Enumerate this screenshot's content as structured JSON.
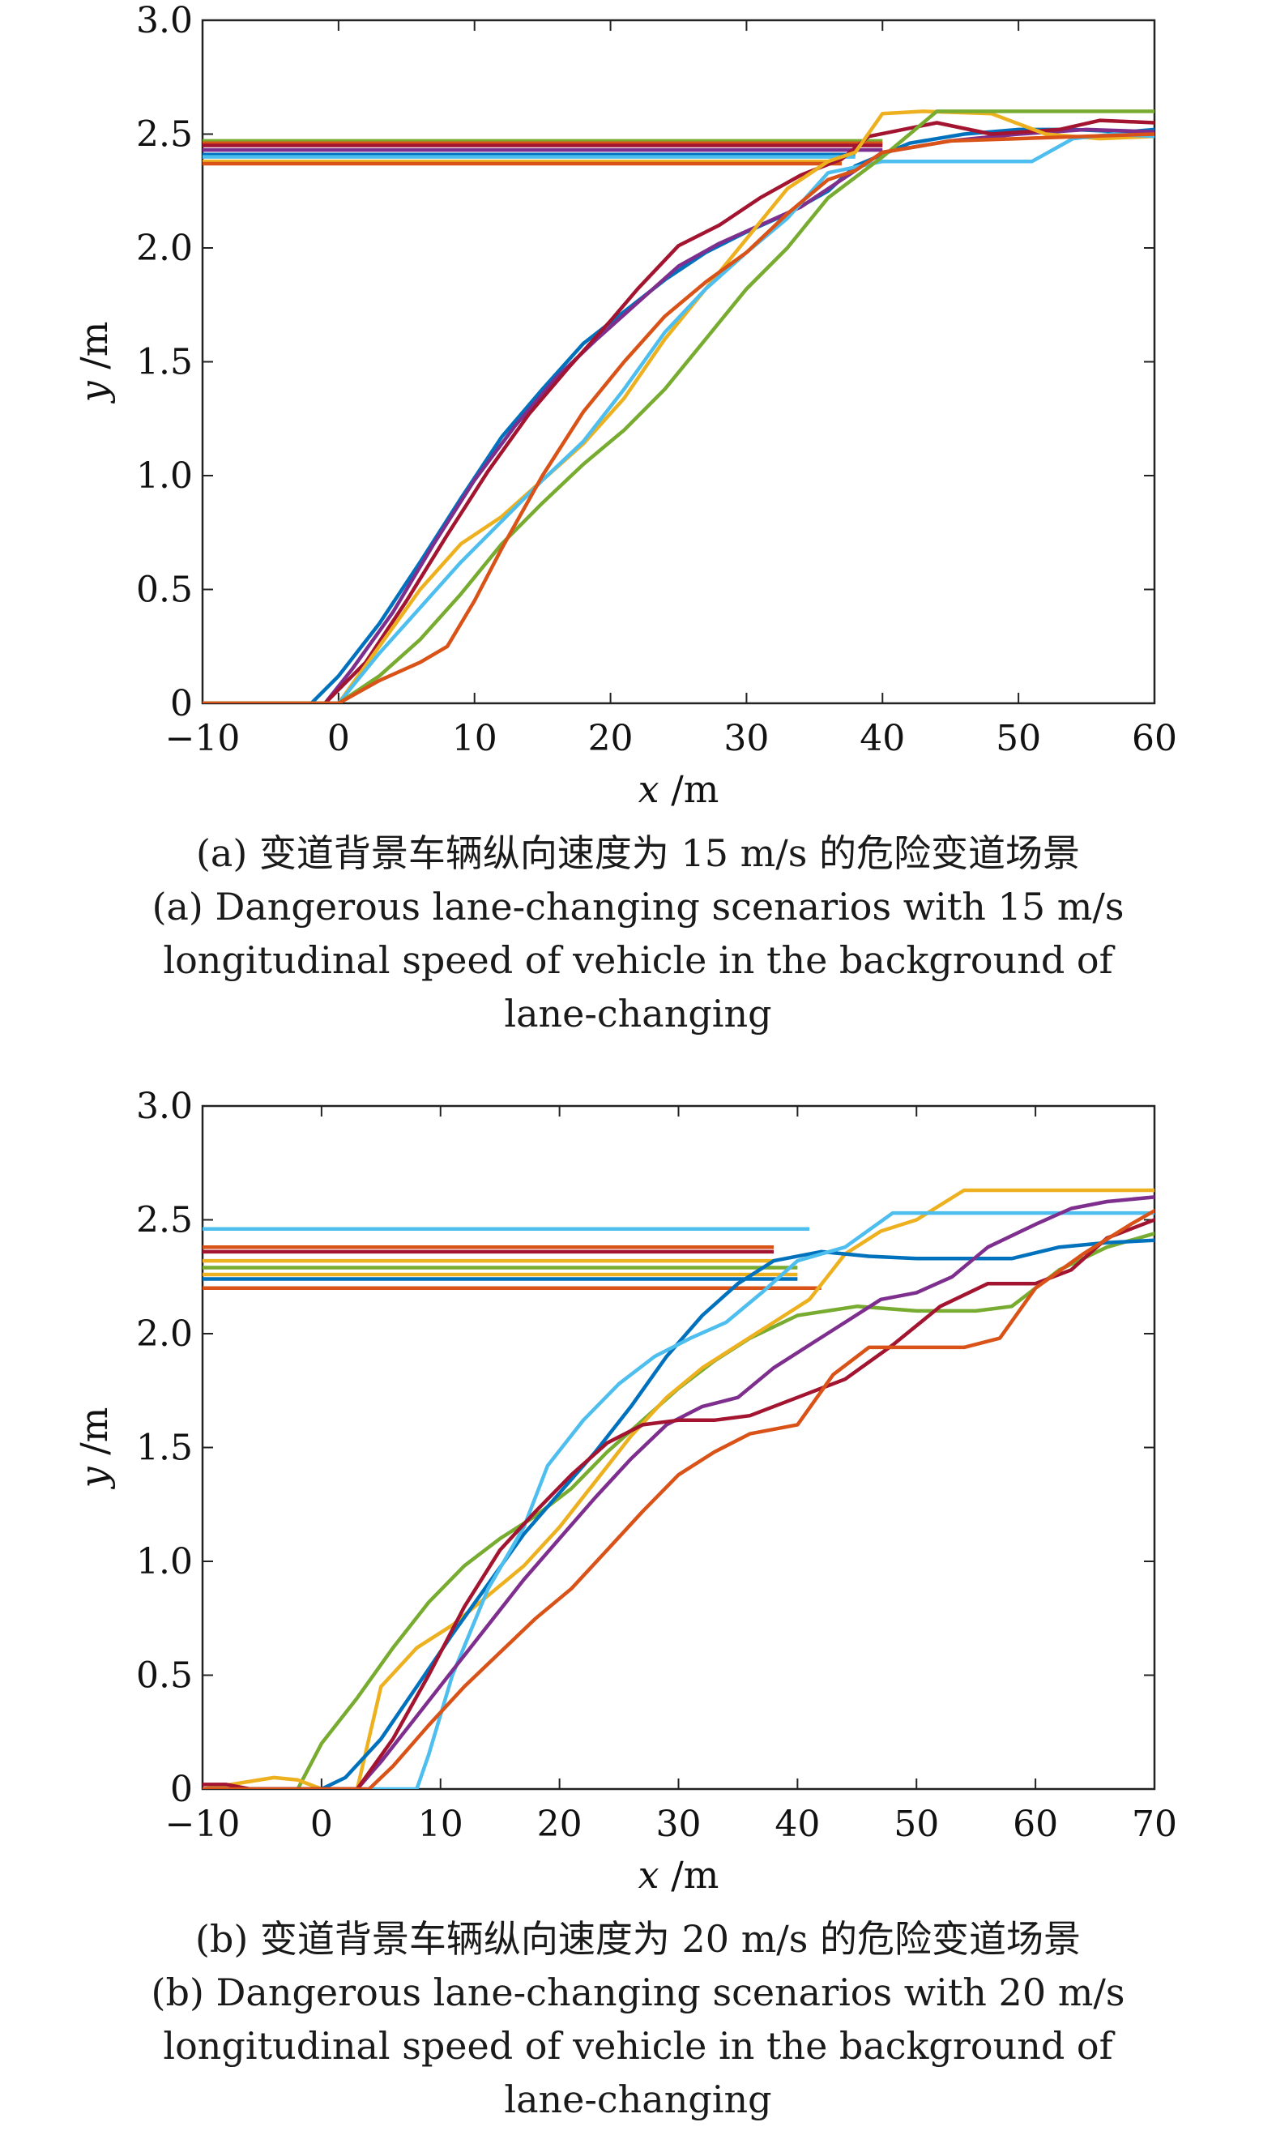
{
  "chart_data": [
    {
      "id": "a",
      "type": "line",
      "xlabel_var": "x",
      "xlabel_unit": "/m",
      "ylabel_var": "y",
      "ylabel_unit": "/m",
      "xlim": [
        -10,
        60
      ],
      "ylim": [
        0,
        3.0
      ],
      "xticks": [
        -10,
        0,
        10,
        20,
        30,
        40,
        50,
        60
      ],
      "xtick_labels": [
        "−10",
        "0",
        "10",
        "20",
        "30",
        "40",
        "50",
        "60"
      ],
      "yticks": [
        0,
        0.5,
        1.0,
        1.5,
        2.0,
        2.5,
        3.0
      ],
      "ytick_labels": [
        "0",
        "0.5",
        "1.0",
        "1.5",
        "2.0",
        "2.5",
        "3.0"
      ],
      "caption_cn": "(a) 变道背景车辆纵向速度为 15 m/s 的危险变道场景",
      "caption_en": [
        "(a) Dangerous lane-changing scenarios with 15 m/s",
        "longitudinal speed of vehicle in the background of",
        "lane-changing"
      ],
      "reference_lines": [
        {
          "color": "#77AC30",
          "y": 2.47,
          "x": [
            -10,
            40
          ]
        },
        {
          "color": "#D95319",
          "y": 2.46,
          "x": [
            -10,
            40
          ]
        },
        {
          "color": "#A2142F",
          "y": 2.45,
          "x": [
            -10,
            40
          ]
        },
        {
          "color": "#7E2F8E",
          "y": 2.43,
          "x": [
            -10,
            40
          ]
        },
        {
          "color": "#0072BD",
          "y": 2.41,
          "x": [
            -10,
            38
          ]
        },
        {
          "color": "#4DBEEE",
          "y": 2.4,
          "x": [
            -10,
            38
          ]
        },
        {
          "color": "#EDB120",
          "y": 2.38,
          "x": [
            -10,
            37
          ]
        },
        {
          "color": "#D95319",
          "y": 2.37,
          "x": [
            -10,
            37
          ]
        }
      ],
      "series": [
        {
          "color": "#0072BD",
          "x": [
            -10,
            -2,
            0,
            3,
            6,
            9,
            12,
            15,
            18,
            21,
            24,
            27,
            30,
            33,
            36,
            38,
            42,
            46,
            50,
            54,
            58,
            60
          ],
          "y": [
            0,
            0,
            0.12,
            0.35,
            0.62,
            0.9,
            1.17,
            1.38,
            1.58,
            1.72,
            1.86,
            1.98,
            2.07,
            2.15,
            2.25,
            2.36,
            2.46,
            2.5,
            2.52,
            2.52,
            2.51,
            2.52
          ]
        },
        {
          "color": "#7E2F8E",
          "x": [
            -10,
            -1,
            1,
            4,
            7,
            10,
            13,
            16,
            19,
            22,
            25,
            28,
            31,
            34,
            37,
            40,
            45,
            50,
            55,
            60
          ],
          "y": [
            0,
            0,
            0.15,
            0.4,
            0.7,
            0.98,
            1.22,
            1.43,
            1.6,
            1.76,
            1.92,
            2.02,
            2.1,
            2.18,
            2.3,
            2.42,
            2.47,
            2.5,
            2.52,
            2.51
          ]
        },
        {
          "color": "#A2142F",
          "x": [
            -10,
            -1,
            2,
            5,
            8,
            11,
            14,
            17,
            20,
            22,
            25,
            28,
            31,
            34,
            37,
            39,
            44,
            48,
            53,
            56,
            60
          ],
          "y": [
            0,
            0,
            0.18,
            0.45,
            0.74,
            1.02,
            1.27,
            1.48,
            1.68,
            1.82,
            2.01,
            2.1,
            2.22,
            2.32,
            2.39,
            2.49,
            2.55,
            2.5,
            2.52,
            2.56,
            2.55
          ]
        },
        {
          "color": "#EDB120",
          "x": [
            -10,
            0,
            3,
            6,
            9,
            12,
            15,
            18,
            21,
            24,
            27,
            30,
            33,
            36,
            38,
            40,
            43,
            48,
            52,
            56,
            60
          ],
          "y": [
            0,
            0,
            0.25,
            0.5,
            0.7,
            0.82,
            0.98,
            1.14,
            1.34,
            1.6,
            1.82,
            2.04,
            2.26,
            2.38,
            2.42,
            2.59,
            2.6,
            2.59,
            2.5,
            2.48,
            2.49
          ]
        },
        {
          "color": "#4DBEEE",
          "x": [
            -10,
            0,
            3,
            6,
            9,
            12,
            15,
            18,
            21,
            24,
            27,
            30,
            33,
            36,
            40,
            44,
            48,
            51,
            54,
            57,
            60
          ],
          "y": [
            0,
            0,
            0.22,
            0.42,
            0.62,
            0.8,
            0.98,
            1.15,
            1.38,
            1.63,
            1.82,
            1.98,
            2.13,
            2.33,
            2.38,
            2.38,
            2.38,
            2.38,
            2.48,
            2.5,
            2.49
          ]
        },
        {
          "color": "#77AC30",
          "x": [
            -10,
            0,
            3,
            6,
            9,
            12,
            15,
            18,
            21,
            24,
            27,
            30,
            33,
            36,
            40,
            44,
            48,
            54,
            60
          ],
          "y": [
            0,
            0,
            0.12,
            0.28,
            0.48,
            0.7,
            0.88,
            1.05,
            1.2,
            1.38,
            1.6,
            1.82,
            2.0,
            2.22,
            2.4,
            2.6,
            2.6,
            2.6,
            2.6
          ]
        },
        {
          "color": "#D95319",
          "x": [
            -10,
            0,
            3,
            6,
            8,
            10,
            12,
            15,
            18,
            21,
            24,
            27,
            30,
            33,
            36,
            38,
            40,
            45,
            50,
            55,
            60
          ],
          "y": [
            0,
            0,
            0.1,
            0.18,
            0.25,
            0.45,
            0.68,
            1.0,
            1.28,
            1.5,
            1.7,
            1.85,
            1.98,
            2.15,
            2.3,
            2.34,
            2.42,
            2.47,
            2.48,
            2.49,
            2.5
          ]
        }
      ]
    },
    {
      "id": "b",
      "type": "line",
      "xlabel_var": "x",
      "xlabel_unit": "/m",
      "ylabel_var": "y",
      "ylabel_unit": "/m",
      "xlim": [
        -10,
        70
      ],
      "ylim": [
        0,
        3.0
      ],
      "xticks": [
        -10,
        0,
        10,
        20,
        30,
        40,
        50,
        60,
        70
      ],
      "xtick_labels": [
        "−10",
        "0",
        "10",
        "20",
        "30",
        "40",
        "50",
        "60",
        "70"
      ],
      "yticks": [
        0,
        0.5,
        1.0,
        1.5,
        2.0,
        2.5,
        3.0
      ],
      "ytick_labels": [
        "0",
        "0.5",
        "1.0",
        "1.5",
        "2.0",
        "2.5",
        "3.0"
      ],
      "caption_cn": "(b) 变道背景车辆纵向速度为 20 m/s 的危险变道场景",
      "caption_en": [
        "(b) Dangerous lane-changing scenarios with 20 m/s",
        "longitudinal speed of vehicle in the background of",
        "lane-changing"
      ],
      "reference_lines": [
        {
          "color": "#4DBEEE",
          "y": 2.46,
          "x": [
            -10,
            41
          ]
        },
        {
          "color": "#D95319",
          "y": 2.38,
          "x": [
            -10,
            38
          ]
        },
        {
          "color": "#A2142F",
          "y": 2.36,
          "x": [
            -10,
            38
          ]
        },
        {
          "color": "#EDB120",
          "y": 2.32,
          "x": [
            -10,
            38
          ]
        },
        {
          "color": "#77AC30",
          "y": 2.29,
          "x": [
            -10,
            40
          ]
        },
        {
          "color": "#EDB120",
          "y": 2.26,
          "x": [
            -10,
            40
          ]
        },
        {
          "color": "#0072BD",
          "y": 2.24,
          "x": [
            -10,
            40
          ]
        },
        {
          "color": "#D95319",
          "y": 2.2,
          "x": [
            -10,
            42
          ]
        }
      ],
      "series": [
        {
          "color": "#77AC30",
          "x": [
            -10,
            -2,
            0,
            3,
            6,
            9,
            12,
            15,
            18,
            21,
            24,
            27,
            30,
            33,
            36,
            40,
            45,
            50,
            55,
            58,
            62,
            66,
            70
          ],
          "y": [
            0,
            0,
            0.2,
            0.4,
            0.62,
            0.82,
            0.98,
            1.1,
            1.2,
            1.32,
            1.48,
            1.62,
            1.76,
            1.88,
            1.98,
            2.08,
            2.12,
            2.1,
            2.1,
            2.12,
            2.28,
            2.38,
            2.44
          ]
        },
        {
          "color": "#EDB120",
          "x": [
            -10,
            -4,
            -2,
            0,
            3,
            5,
            8,
            11,
            14,
            17,
            20,
            23,
            26,
            29,
            32,
            35,
            38,
            41,
            44,
            47,
            50,
            54,
            58,
            62,
            66,
            70
          ],
          "y": [
            0,
            0.05,
            0.04,
            0,
            0,
            0.45,
            0.62,
            0.72,
            0.85,
            0.98,
            1.15,
            1.35,
            1.55,
            1.72,
            1.85,
            1.95,
            2.05,
            2.15,
            2.35,
            2.45,
            2.5,
            2.63,
            2.63,
            2.63,
            2.63,
            2.63
          ]
        },
        {
          "color": "#0072BD",
          "x": [
            -10,
            0,
            2,
            5,
            8,
            11,
            14,
            17,
            20,
            23,
            26,
            29,
            32,
            35,
            38,
            42,
            46,
            50,
            54,
            58,
            62,
            66,
            70
          ],
          "y": [
            0,
            0,
            0.05,
            0.22,
            0.45,
            0.68,
            0.9,
            1.12,
            1.3,
            1.48,
            1.68,
            1.9,
            2.08,
            2.22,
            2.32,
            2.36,
            2.34,
            2.33,
            2.33,
            2.33,
            2.38,
            2.4,
            2.41
          ]
        },
        {
          "color": "#4DBEEE",
          "x": [
            -10,
            7,
            8,
            9,
            11,
            14,
            17,
            19,
            22,
            25,
            28,
            31,
            34,
            37,
            40,
            44,
            48,
            52,
            56,
            60,
            65,
            70
          ],
          "y": [
            0,
            0,
            0,
            0.15,
            0.5,
            0.88,
            1.15,
            1.42,
            1.62,
            1.78,
            1.9,
            1.98,
            2.05,
            2.18,
            2.32,
            2.38,
            2.53,
            2.53,
            2.53,
            2.53,
            2.53,
            2.53
          ]
        },
        {
          "color": "#7E2F8E",
          "x": [
            -10,
            3,
            5,
            8,
            11,
            14,
            17,
            20,
            23,
            26,
            29,
            32,
            35,
            38,
            41,
            44,
            47,
            50,
            53,
            56,
            60,
            63,
            66,
            70
          ],
          "y": [
            0,
            0,
            0.12,
            0.32,
            0.52,
            0.72,
            0.92,
            1.1,
            1.28,
            1.45,
            1.6,
            1.68,
            1.72,
            1.85,
            1.95,
            2.05,
            2.15,
            2.18,
            2.25,
            2.38,
            2.48,
            2.55,
            2.58,
            2.6
          ]
        },
        {
          "color": "#A2142F",
          "x": [
            -10,
            -8,
            -6,
            3,
            6,
            9,
            12,
            15,
            18,
            21,
            24,
            27,
            30,
            33,
            36,
            40,
            44,
            48,
            52,
            56,
            60,
            63,
            66,
            70
          ],
          "y": [
            0.02,
            0.02,
            0,
            0,
            0.22,
            0.5,
            0.8,
            1.05,
            1.22,
            1.38,
            1.52,
            1.6,
            1.62,
            1.62,
            1.64,
            1.72,
            1.8,
            1.95,
            2.12,
            2.22,
            2.22,
            2.28,
            2.42,
            2.5
          ]
        },
        {
          "color": "#D95319",
          "x": [
            -10,
            4,
            6,
            9,
            12,
            15,
            18,
            21,
            24,
            27,
            30,
            33,
            36,
            40,
            43,
            46,
            50,
            54,
            57,
            60,
            64,
            68,
            70
          ],
          "y": [
            0,
            0,
            0.1,
            0.28,
            0.45,
            0.6,
            0.75,
            0.88,
            1.05,
            1.22,
            1.38,
            1.48,
            1.56,
            1.6,
            1.82,
            1.94,
            1.94,
            1.94,
            1.98,
            2.2,
            2.35,
            2.48,
            2.54
          ]
        }
      ]
    }
  ]
}
